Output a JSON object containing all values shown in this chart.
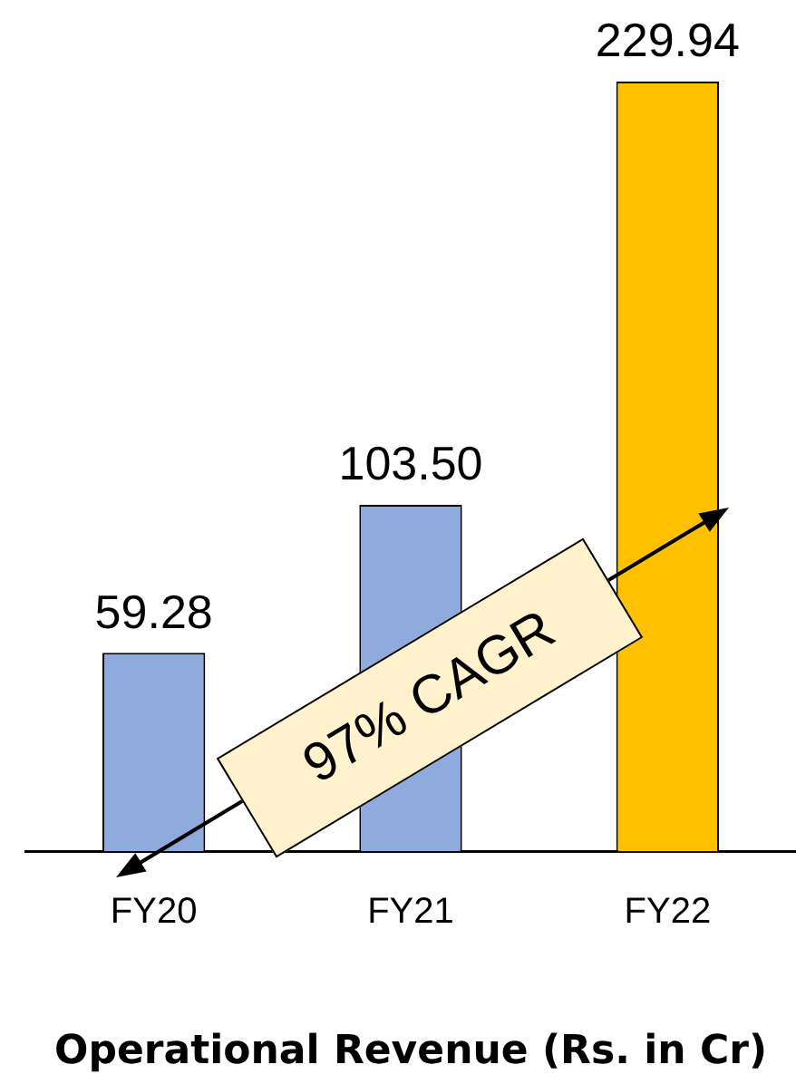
{
  "chart_data": {
    "type": "bar",
    "xlabel": "Operational Revenue (Rs. in Cr)",
    "categories": [
      "FY20",
      "FY21",
      "FY22"
    ],
    "values": [
      59.28,
      103.5,
      229.94
    ],
    "colors": [
      "#8faadc",
      "#8faadc",
      "#ffc000"
    ],
    "value_labels": [
      "59.28",
      "103.50",
      "229.94"
    ],
    "annotations": [
      "97% CAGR"
    ],
    "grid": false,
    "legend": false
  }
}
